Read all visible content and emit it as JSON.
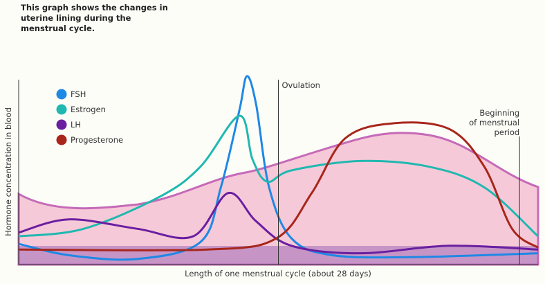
{
  "chart_data": {
    "type": "line",
    "title": "This graph shows the changes in uterine lining during the menstrual cycle.",
    "xlabel": "Length of one menstrual cycle (about 28 days)",
    "ylabel": "Hormone concentration in blood",
    "xlim": [
      0,
      28
    ],
    "ylim": [
      0,
      100
    ],
    "grid": false,
    "legend_placement": "top-left",
    "annotations": [
      {
        "text": "Ovulation",
        "x": 14
      },
      {
        "text": "Beginning of menstrual period",
        "lines": [
          "Beginning",
          "of menstrual",
          "period"
        ],
        "x": 27
      }
    ],
    "series": [
      {
        "name": "FSH",
        "color": "#1e88e5",
        "points": [
          [
            0,
            11
          ],
          [
            2.7,
            5
          ],
          [
            6.4,
            3
          ],
          [
            9.8,
            12
          ],
          [
            10.9,
            41
          ],
          [
            11.9,
            82
          ],
          [
            12.3,
            100
          ],
          [
            12.8,
            85
          ],
          [
            13.5,
            41
          ],
          [
            14.7,
            14
          ],
          [
            16.9,
            5
          ],
          [
            21.4,
            4
          ],
          [
            28,
            6
          ]
        ]
      },
      {
        "name": "Estrogen",
        "color": "#20b8b0",
        "points": [
          [
            0,
            15
          ],
          [
            3.5,
            19
          ],
          [
            7.6,
            36
          ],
          [
            9.8,
            52
          ],
          [
            11.9,
            79
          ],
          [
            12.6,
            56
          ],
          [
            13.4,
            44
          ],
          [
            14.7,
            50
          ],
          [
            18.4,
            55
          ],
          [
            22.1,
            52
          ],
          [
            25.1,
            41
          ],
          [
            28,
            15
          ]
        ]
      },
      {
        "name": "LH",
        "color": "#6a1fa0",
        "points": [
          [
            0,
            17
          ],
          [
            2.7,
            24
          ],
          [
            6.4,
            19
          ],
          [
            9.4,
            15
          ],
          [
            11.3,
            38
          ],
          [
            12.8,
            23
          ],
          [
            14.7,
            10
          ],
          [
            18.4,
            6
          ],
          [
            23.2,
            10
          ],
          [
            28,
            8
          ]
        ]
      },
      {
        "name": "Progesterone",
        "color": "#a8261c",
        "points": [
          [
            0,
            8
          ],
          [
            10.2,
            8
          ],
          [
            13.9,
            14
          ],
          [
            15.8,
            38
          ],
          [
            17.6,
            67
          ],
          [
            20.2,
            75
          ],
          [
            23.2,
            72
          ],
          [
            25.1,
            52
          ],
          [
            26.6,
            19
          ],
          [
            28,
            9
          ]
        ]
      }
    ]
  }
}
